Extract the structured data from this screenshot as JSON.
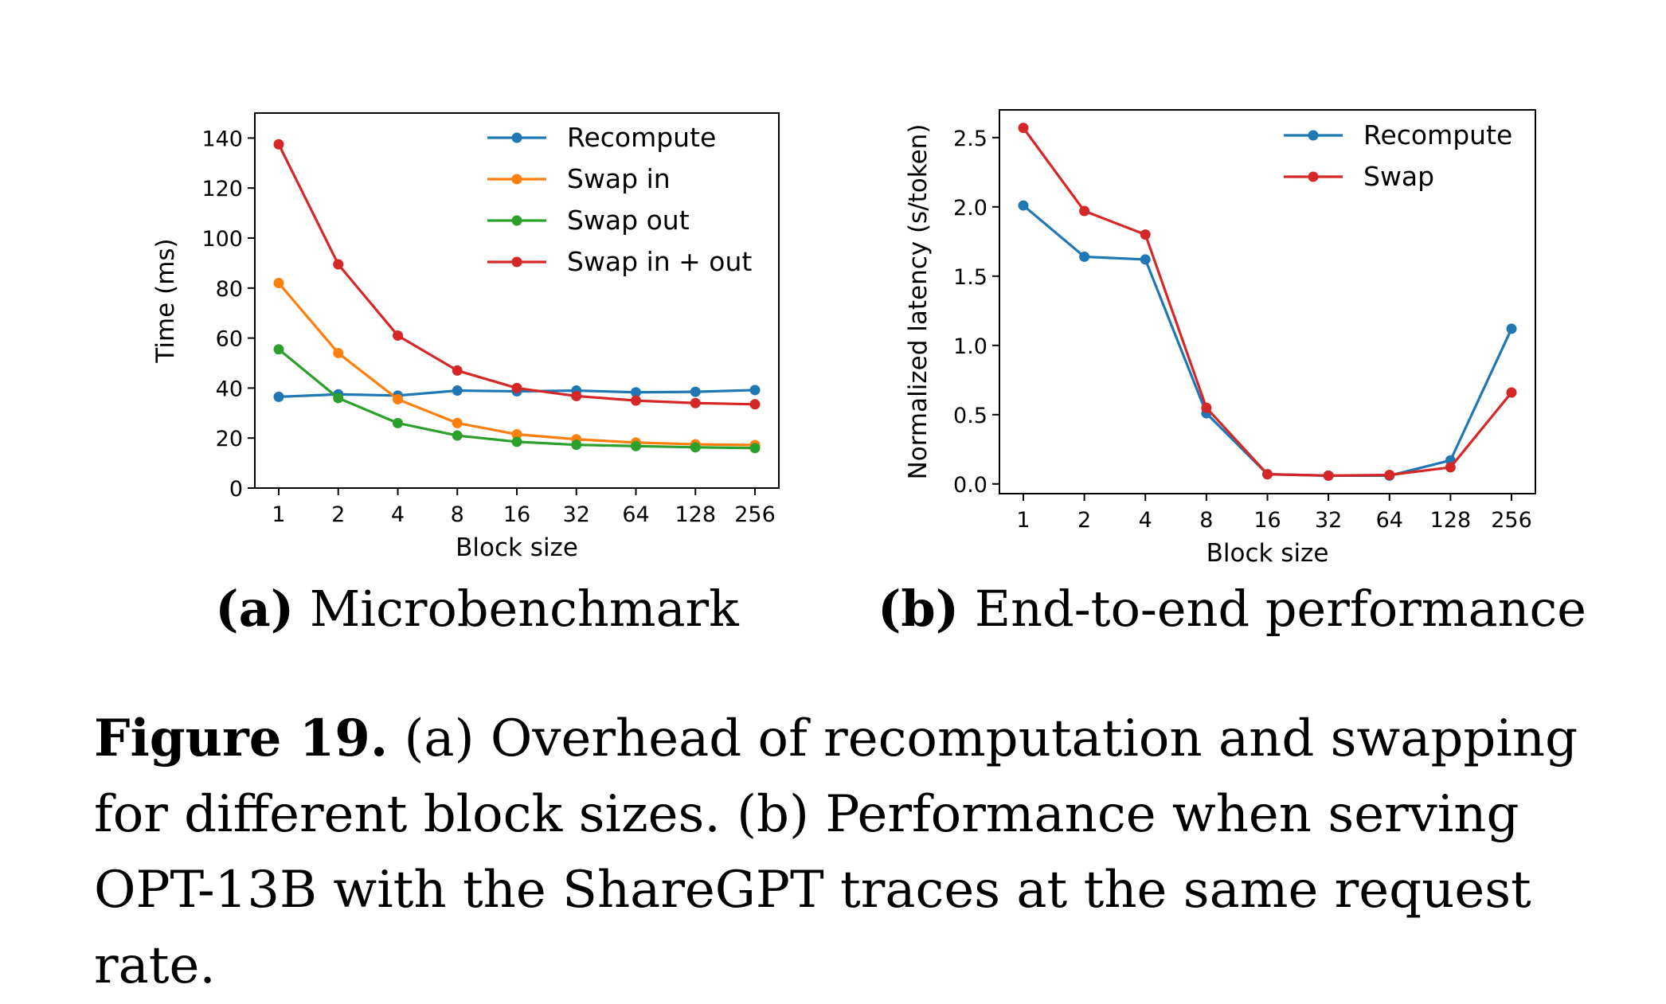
{
  "subcaptions": {
    "a": {
      "label": "(a)",
      "text": "Microbenchmark"
    },
    "b": {
      "label": "(b)",
      "text": "End-to-end performance"
    }
  },
  "caption": {
    "label": "Figure 19.",
    "text": " (a) Overhead of recomputation and swapping for different block sizes. (b) Performance when serving OPT-13B with the ShareGPT traces at the same request rate."
  },
  "colors": {
    "blue": "#1f77b4",
    "orange": "#ff7f0e",
    "green": "#2ca02c",
    "red": "#d62728"
  },
  "chart_data": [
    {
      "type": "line",
      "id": "a",
      "xlabel": "Block size",
      "ylabel": "Time (ms)",
      "categories": [
        "1",
        "2",
        "4",
        "8",
        "16",
        "32",
        "64",
        "128",
        "256"
      ],
      "ylim": [
        0,
        150
      ],
      "yticks": [
        0,
        20,
        40,
        60,
        80,
        100,
        120,
        140
      ],
      "ytick_labels": [
        "0",
        "20",
        "40",
        "60",
        "80",
        "100",
        "120",
        "140"
      ],
      "legend": "top-right",
      "grid": false,
      "series": [
        {
          "name": "Recompute",
          "color": "#1f77b4",
          "values": [
            36.5,
            37.5,
            37,
            39,
            38.7,
            39,
            38.3,
            38.5,
            39.2
          ]
        },
        {
          "name": "Swap in",
          "color": "#ff7f0e",
          "values": [
            82,
            54,
            35.5,
            26,
            21.5,
            19.5,
            18.2,
            17.5,
            17.2
          ]
        },
        {
          "name": "Swap out",
          "color": "#2ca02c",
          "values": [
            55.5,
            36,
            26,
            21,
            18.5,
            17.3,
            16.8,
            16.3,
            16
          ]
        },
        {
          "name": "Swap in + out",
          "color": "#d62728",
          "values": [
            137.5,
            89.5,
            61,
            47,
            40,
            36.8,
            35,
            34,
            33.5
          ]
        }
      ]
    },
    {
      "type": "line",
      "id": "b",
      "xlabel": "Block size",
      "ylabel": "Normalized latency (s/token)",
      "categories": [
        "1",
        "2",
        "4",
        "8",
        "16",
        "32",
        "64",
        "128",
        "256"
      ],
      "ylim": [
        -0.07,
        2.7
      ],
      "yticks": [
        0,
        0.5,
        1,
        1.5,
        2,
        2.5
      ],
      "ytick_labels": [
        "0.0",
        "0.5",
        "1.0",
        "1.5",
        "2.0",
        "2.5"
      ],
      "legend": "top-right",
      "grid": false,
      "series": [
        {
          "name": "Recompute",
          "color": "#1f77b4",
          "values": [
            2.01,
            1.64,
            1.62,
            0.51,
            0.07,
            0.06,
            0.06,
            0.17,
            1.12
          ]
        },
        {
          "name": "Swap",
          "color": "#d62728",
          "values": [
            2.57,
            1.97,
            1.8,
            0.55,
            0.07,
            0.06,
            0.065,
            0.12,
            0.66
          ]
        }
      ]
    }
  ]
}
